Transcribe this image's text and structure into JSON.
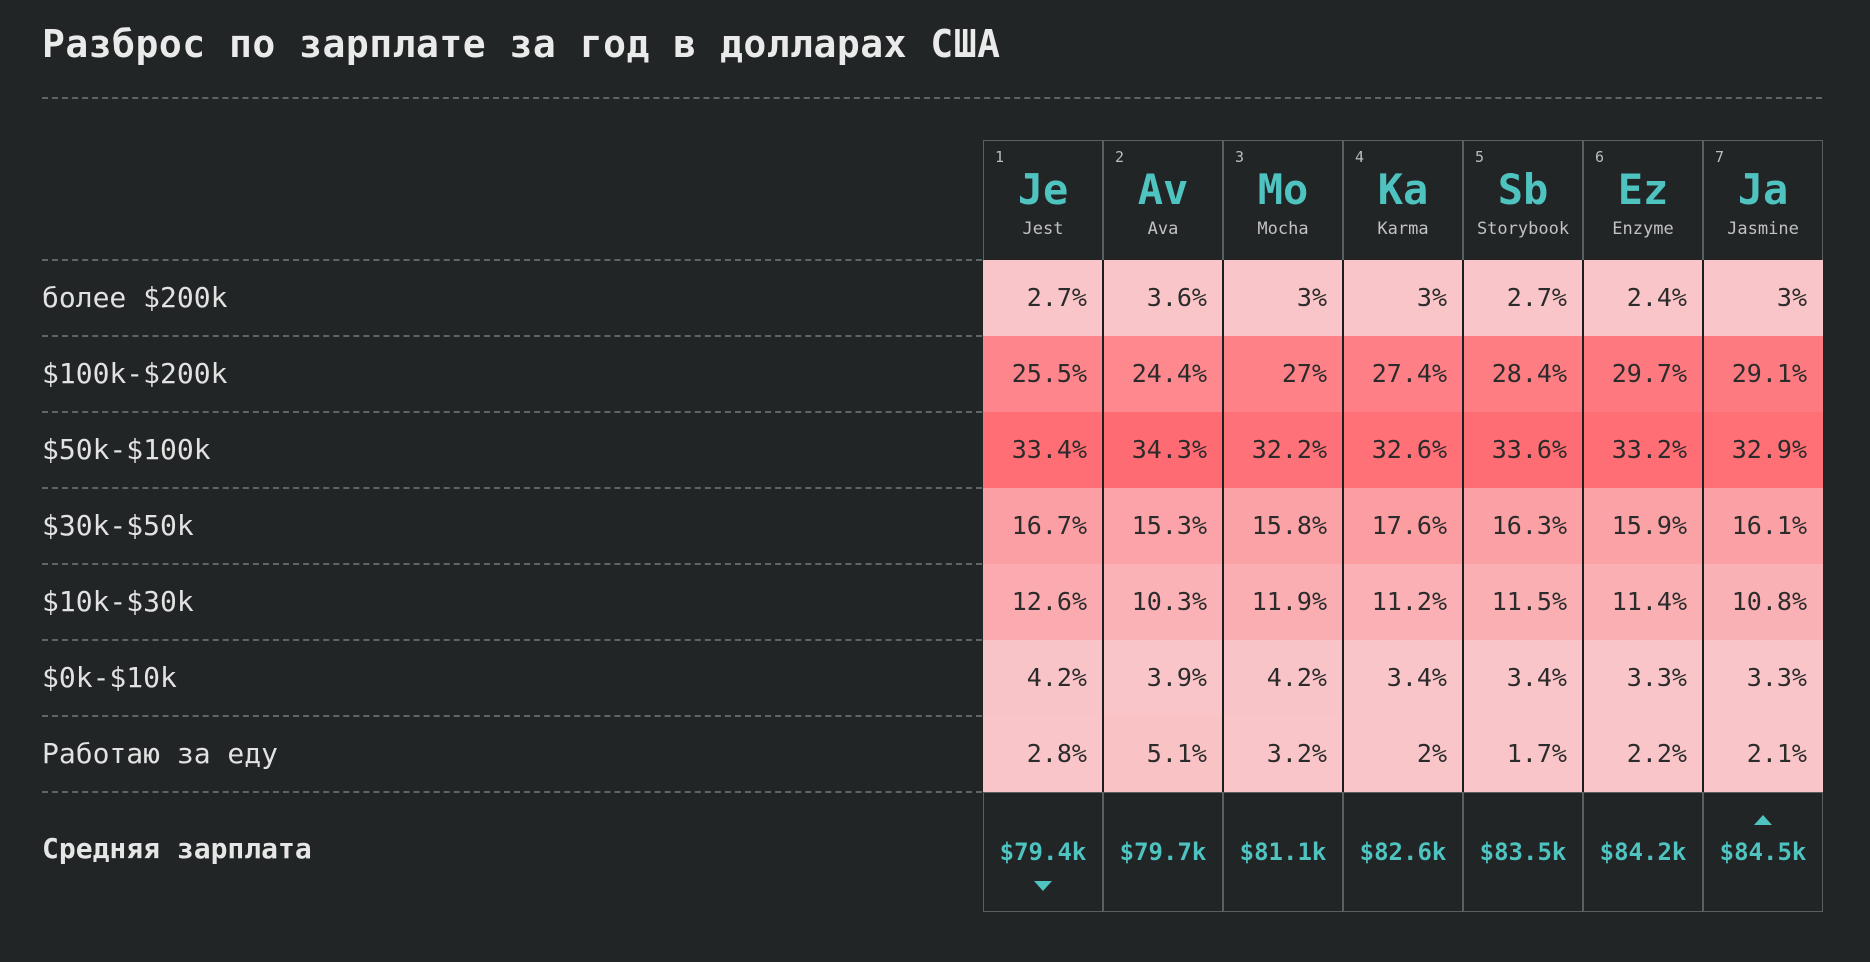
{
  "title": "Разброс по зарплате за год в долларах США",
  "chart_data": {
    "type": "heatmap",
    "title": "Разброс по зарплате за год в долларах США",
    "columns": [
      {
        "rank": "1",
        "symbol": "Je",
        "name": "Jest"
      },
      {
        "rank": "2",
        "symbol": "Av",
        "name": "Ava"
      },
      {
        "rank": "3",
        "symbol": "Mo",
        "name": "Mocha"
      },
      {
        "rank": "4",
        "symbol": "Ka",
        "name": "Karma"
      },
      {
        "rank": "5",
        "symbol": "Sb",
        "name": "Storybook"
      },
      {
        "rank": "6",
        "symbol": "Ez",
        "name": "Enzyme"
      },
      {
        "rank": "7",
        "symbol": "Ja",
        "name": "Jasmine"
      }
    ],
    "rows": [
      {
        "label": "более $200k",
        "values": [
          "2.7%",
          "3.6%",
          "3%",
          "3%",
          "2.7%",
          "2.4%",
          "3%"
        ]
      },
      {
        "label": "$100k-$200k",
        "values": [
          "25.5%",
          "24.4%",
          "27%",
          "27.4%",
          "28.4%",
          "29.7%",
          "29.1%"
        ]
      },
      {
        "label": "$50k-$100k",
        "values": [
          "33.4%",
          "34.3%",
          "32.2%",
          "32.6%",
          "33.6%",
          "33.2%",
          "32.9%"
        ]
      },
      {
        "label": "$30k-$50k",
        "values": [
          "16.7%",
          "15.3%",
          "15.8%",
          "17.6%",
          "16.3%",
          "15.9%",
          "16.1%"
        ]
      },
      {
        "label": "$10k-$30k",
        "values": [
          "12.6%",
          "10.3%",
          "11.9%",
          "11.2%",
          "11.5%",
          "11.4%",
          "10.8%"
        ]
      },
      {
        "label": "$0k-$10k",
        "values": [
          "4.2%",
          "3.9%",
          "4.2%",
          "3.4%",
          "3.4%",
          "3.3%",
          "3.3%"
        ]
      },
      {
        "label": "Работаю за еду",
        "values": [
          "2.8%",
          "5.1%",
          "3.2%",
          "2%",
          "1.7%",
          "2.2%",
          "2.1%"
        ]
      }
    ],
    "summary": {
      "label": "Средняя зарплата",
      "values": [
        "$79.4k",
        "$79.7k",
        "$81.1k",
        "$82.6k",
        "$83.5k",
        "$84.2k",
        "$84.5k"
      ],
      "markers": [
        "down",
        "",
        "",
        "",
        "",
        "",
        "up"
      ]
    }
  },
  "colors": {
    "background": "#212526",
    "accent": "#4fc3c0",
    "heat_low": "#f9c5c8",
    "heat_high": "#ff6b72"
  }
}
